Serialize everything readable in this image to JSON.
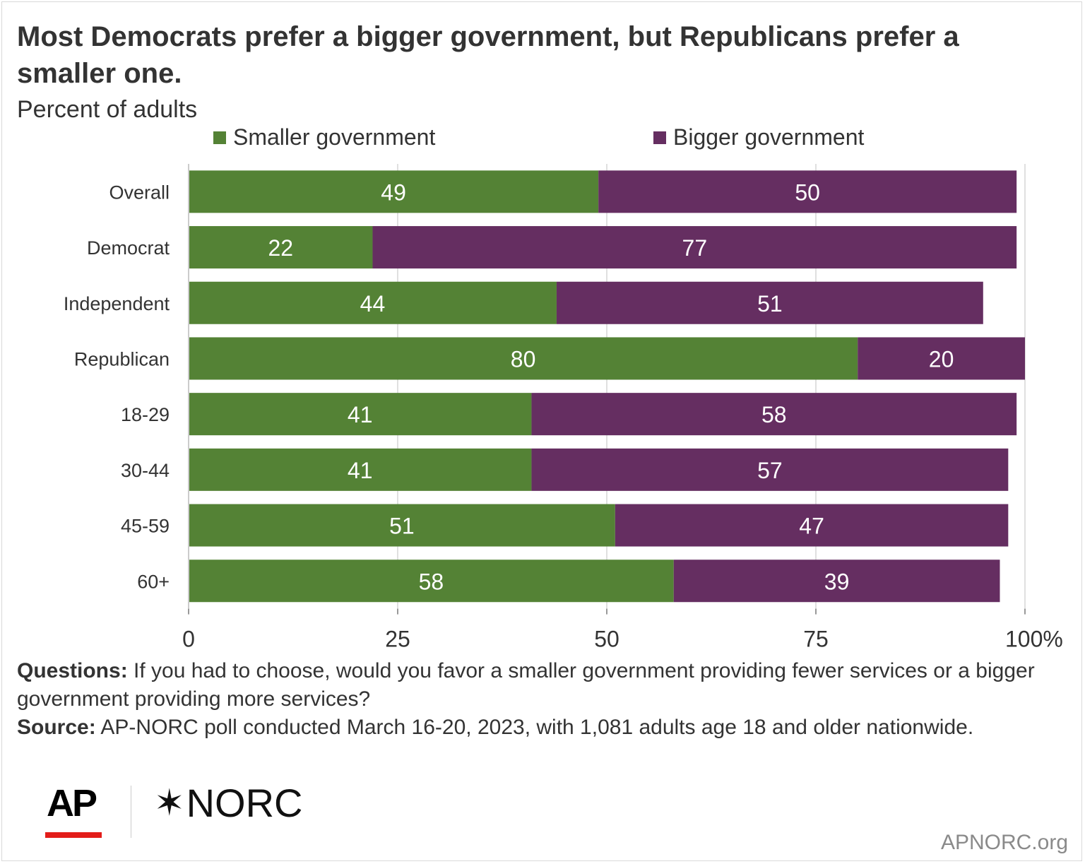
{
  "header": {
    "title": "Most Democrats prefer a bigger government, but Republicans prefer a smaller one.",
    "subtitle": "Percent of adults"
  },
  "legend": {
    "smaller": "Smaller government",
    "bigger": "Bigger government"
  },
  "colors": {
    "smaller": "#548235",
    "bigger": "#652e61",
    "grid": "#e0e0e0",
    "text": "#333333"
  },
  "chart_data": {
    "type": "bar",
    "orientation": "horizontal",
    "stacked": true,
    "categories": [
      "Overall",
      "Democrat",
      "Independent",
      "Republican",
      "18-29",
      "30-44",
      "45-59",
      "60+"
    ],
    "series": [
      {
        "name": "Smaller government",
        "values": [
          49,
          22,
          44,
          80,
          41,
          41,
          51,
          58
        ]
      },
      {
        "name": "Bigger government",
        "values": [
          50,
          77,
          51,
          20,
          58,
          57,
          47,
          39
        ]
      }
    ],
    "xlim": [
      0,
      100
    ],
    "xticks": [
      "0",
      "25",
      "50",
      "75",
      "100%"
    ],
    "xtick_values": [
      0,
      25,
      50,
      75,
      100
    ],
    "data_labels": true,
    "grid": true,
    "legend_position": "top"
  },
  "footer": {
    "questions_label": "Questions:",
    "questions_text": "If you had to choose, would you favor a smaller government providing fewer services or a bigger government providing more services?",
    "source_label": "Source:",
    "source_text": "AP-NORC poll conducted March 16-20, 2023, with 1,081 adults age 18 and older nationwide."
  },
  "logos": {
    "ap": "AP",
    "norc": "NORC",
    "norc_star": "✶"
  },
  "site": "APNORC.org"
}
